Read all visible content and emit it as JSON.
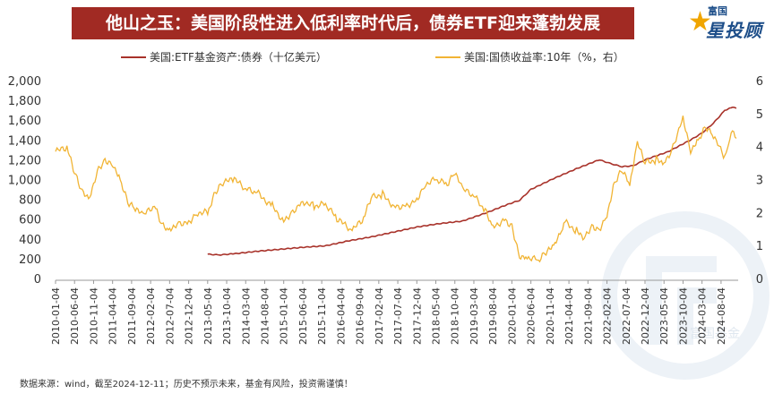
{
  "header": {
    "title": "他山之玉：美国阶段性进入低利率时代后，债券ETF迎来蓬勃发展"
  },
  "logo": {
    "top_text": "富国",
    "main_text": "星投顾"
  },
  "watermark": {
    "text": "富国基金"
  },
  "footer": {
    "source": "数据来源：wind，截至2024-12-11；历史不预示未来，基金有风险，投资需谨慎！"
  },
  "chart_data": {
    "type": "line",
    "legend": [
      "美国:ETF基金资产:债券（十亿美元）",
      "美国:国债收益率:10年（%，右）"
    ],
    "legend_placement": "top",
    "colors": {
      "etf": "#a8322a",
      "yield": "#f1b434",
      "banner": "#a12a23"
    },
    "y_left": {
      "min": 0,
      "max": 2000,
      "step": 200,
      "ticks": [
        "0",
        "200",
        "400",
        "600",
        "800",
        "1,000",
        "1,200",
        "1,400",
        "1,600",
        "1,800",
        "2,000"
      ]
    },
    "y_right": {
      "min": 0,
      "max": 6,
      "step": 1,
      "ticks": [
        "0",
        "1",
        "2",
        "3",
        "4",
        "5",
        "6"
      ]
    },
    "x_ticks": [
      "2010-01-04",
      "2010-06-04",
      "2010-11-04",
      "2011-04-04",
      "2011-09-04",
      "2012-02-04",
      "2012-07-04",
      "2012-12-04",
      "2013-05-04",
      "2013-10-04",
      "2014-03-04",
      "2014-08-04",
      "2015-01-04",
      "2015-06-04",
      "2015-11-04",
      "2016-04-04",
      "2016-09-04",
      "2017-02-04",
      "2017-07-04",
      "2017-12-04",
      "2018-05-04",
      "2018-10-04",
      "2019-03-04",
      "2019-08-04",
      "2020-01-04",
      "2020-06-04",
      "2020-11-04",
      "2021-04-04",
      "2021-09-04",
      "2022-02-04",
      "2022-07-04",
      "2022-12-04",
      "2023-05-04",
      "2023-10-04",
      "2024-03-04",
      "2024-08-04"
    ],
    "series": [
      {
        "name": "美国:ETF基金资产:债券（十亿美元）",
        "axis": "left",
        "points": [
          [
            "2013-05",
            245
          ],
          [
            "2013-08",
            238
          ],
          [
            "2013-12",
            250
          ],
          [
            "2014-06",
            275
          ],
          [
            "2014-12",
            295
          ],
          [
            "2015-06",
            315
          ],
          [
            "2015-12",
            330
          ],
          [
            "2016-06",
            380
          ],
          [
            "2016-12",
            420
          ],
          [
            "2017-06",
            470
          ],
          [
            "2017-12",
            520
          ],
          [
            "2018-06",
            555
          ],
          [
            "2018-12",
            580
          ],
          [
            "2019-06",
            660
          ],
          [
            "2019-12",
            750
          ],
          [
            "2020-03",
            790
          ],
          [
            "2020-06",
            900
          ],
          [
            "2020-12",
            1010
          ],
          [
            "2021-06",
            1110
          ],
          [
            "2021-12",
            1200
          ],
          [
            "2022-03",
            1160
          ],
          [
            "2022-06",
            1130
          ],
          [
            "2022-09",
            1140
          ],
          [
            "2022-12",
            1200
          ],
          [
            "2023-06",
            1280
          ],
          [
            "2023-12",
            1400
          ],
          [
            "2024-03",
            1470
          ],
          [
            "2024-06",
            1570
          ],
          [
            "2024-09",
            1700
          ],
          [
            "2024-11",
            1730
          ],
          [
            "2024-12",
            1720
          ]
        ]
      },
      {
        "name": "美国:国债收益率:10年（%，右）",
        "axis": "right",
        "points": [
          [
            "2010-01",
            3.85
          ],
          [
            "2010-04",
            3.95
          ],
          [
            "2010-06",
            3.2
          ],
          [
            "2010-08",
            2.6
          ],
          [
            "2010-10",
            2.45
          ],
          [
            "2010-12",
            3.3
          ],
          [
            "2011-02",
            3.6
          ],
          [
            "2011-04",
            3.5
          ],
          [
            "2011-06",
            3.0
          ],
          [
            "2011-08",
            2.3
          ],
          [
            "2011-10",
            2.1
          ],
          [
            "2011-12",
            1.9
          ],
          [
            "2012-03",
            2.2
          ],
          [
            "2012-05",
            1.6
          ],
          [
            "2012-07",
            1.45
          ],
          [
            "2012-09",
            1.7
          ],
          [
            "2012-12",
            1.7
          ],
          [
            "2013-02",
            2.0
          ],
          [
            "2013-05",
            2.0
          ],
          [
            "2013-07",
            2.6
          ],
          [
            "2013-09",
            2.9
          ],
          [
            "2013-12",
            3.0
          ],
          [
            "2014-03",
            2.7
          ],
          [
            "2014-06",
            2.6
          ],
          [
            "2014-10",
            2.2
          ],
          [
            "2015-01",
            1.75
          ],
          [
            "2015-03",
            2.0
          ],
          [
            "2015-06",
            2.35
          ],
          [
            "2015-09",
            2.2
          ],
          [
            "2015-12",
            2.25
          ],
          [
            "2016-03",
            1.8
          ],
          [
            "2016-07",
            1.45
          ],
          [
            "2016-10",
            1.8
          ],
          [
            "2016-12",
            2.45
          ],
          [
            "2017-03",
            2.55
          ],
          [
            "2017-06",
            2.2
          ],
          [
            "2017-09",
            2.2
          ],
          [
            "2017-12",
            2.4
          ],
          [
            "2018-02",
            2.85
          ],
          [
            "2018-05",
            3.0
          ],
          [
            "2018-08",
            2.85
          ],
          [
            "2018-10",
            3.2
          ],
          [
            "2018-12",
            2.7
          ],
          [
            "2019-03",
            2.5
          ],
          [
            "2019-06",
            2.05
          ],
          [
            "2019-08",
            1.55
          ],
          [
            "2019-11",
            1.8
          ],
          [
            "2020-01",
            1.6
          ],
          [
            "2020-03",
            0.7
          ],
          [
            "2020-05",
            0.65
          ],
          [
            "2020-08",
            0.55
          ],
          [
            "2020-10",
            0.8
          ],
          [
            "2020-12",
            0.95
          ],
          [
            "2021-02",
            1.4
          ],
          [
            "2021-03",
            1.7
          ],
          [
            "2021-06",
            1.45
          ],
          [
            "2021-08",
            1.25
          ],
          [
            "2021-10",
            1.6
          ],
          [
            "2021-12",
            1.5
          ],
          [
            "2022-02",
            1.95
          ],
          [
            "2022-04",
            2.9
          ],
          [
            "2022-06",
            3.3
          ],
          [
            "2022-08",
            2.8
          ],
          [
            "2022-10",
            4.1
          ],
          [
            "2022-12",
            3.5
          ],
          [
            "2023-03",
            3.6
          ],
          [
            "2023-05",
            3.5
          ],
          [
            "2023-07",
            3.9
          ],
          [
            "2023-10",
            4.9
          ],
          [
            "2023-12",
            3.9
          ],
          [
            "2024-02",
            4.2
          ],
          [
            "2024-04",
            4.6
          ],
          [
            "2024-06",
            4.3
          ],
          [
            "2024-09",
            3.65
          ],
          [
            "2024-10",
            4.1
          ],
          [
            "2024-11",
            4.4
          ],
          [
            "2024-12",
            4.25
          ]
        ]
      }
    ],
    "grid": false
  }
}
